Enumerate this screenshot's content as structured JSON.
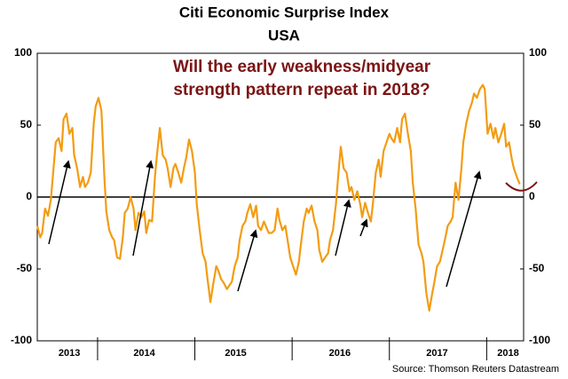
{
  "chart_data": {
    "type": "line",
    "title": "Citi Economic Surprise Index",
    "subtitle": "USA",
    "annotation": [
      "Will the early weakness/midyear",
      "strength pattern repeat in 2018?"
    ],
    "source": "Source: Thomson Reuters Datastream",
    "color": "#f39c12",
    "x": [
      2013.38,
      2013.41,
      2013.43,
      2013.46,
      2013.49,
      2013.52,
      2013.54,
      2013.57,
      2013.6,
      2013.63,
      2013.65,
      2013.68,
      2013.71,
      2013.74,
      2013.76,
      2013.79,
      2013.82,
      2013.85,
      2013.87,
      2013.9,
      2013.93,
      2013.96,
      2013.98,
      2014.01,
      2014.04,
      2014.07,
      2014.09,
      2014.12,
      2014.15,
      2014.17,
      2014.2,
      2014.23,
      2014.26,
      2014.28,
      2014.31,
      2014.34,
      2014.37,
      2014.39,
      2014.42,
      2014.45,
      2014.48,
      2014.5,
      2014.53,
      2014.56,
      2014.59,
      2014.61,
      2014.64,
      2014.67,
      2014.7,
      2014.72,
      2014.75,
      2014.78,
      2014.8,
      2014.83,
      2014.86,
      2014.89,
      2014.91,
      2014.94,
      2014.97,
      2015.0,
      2015.02,
      2015.05,
      2015.08,
      2015.11,
      2015.13,
      2015.16,
      2015.19,
      2015.22,
      2015.24,
      2015.27,
      2015.3,
      2015.33,
      2015.35,
      2015.38,
      2015.41,
      2015.44,
      2015.46,
      2015.49,
      2015.52,
      2015.54,
      2015.57,
      2015.6,
      2015.63,
      2015.65,
      2015.68,
      2015.71,
      2015.74,
      2015.76,
      2015.79,
      2015.82,
      2015.85,
      2015.87,
      2015.9,
      2015.93,
      2015.96,
      2015.98,
      2016.01,
      2016.04,
      2016.07,
      2016.09,
      2016.12,
      2016.15,
      2016.17,
      2016.2,
      2016.23,
      2016.26,
      2016.28,
      2016.31,
      2016.34,
      2016.37,
      2016.39,
      2016.42,
      2016.45,
      2016.48,
      2016.5,
      2016.53,
      2016.56,
      2016.59,
      2016.61,
      2016.64,
      2016.67,
      2016.7,
      2016.72,
      2016.75,
      2016.78,
      2016.81,
      2016.83,
      2016.86,
      2016.89,
      2016.91,
      2016.94,
      2016.97,
      2017.0,
      2017.02,
      2017.05,
      2017.08,
      2017.11,
      2017.13,
      2017.16,
      2017.19,
      2017.22,
      2017.24,
      2017.27,
      2017.3,
      2017.33,
      2017.35,
      2017.38,
      2017.41,
      2017.44,
      2017.46,
      2017.49,
      2017.52,
      2017.54,
      2017.57,
      2017.6,
      2017.63,
      2017.65,
      2017.68,
      2017.71,
      2017.74,
      2017.76,
      2017.79,
      2017.82,
      2017.85,
      2017.87,
      2017.9,
      2017.93,
      2017.96,
      2017.98,
      2018.01,
      2018.04,
      2018.07,
      2018.09,
      2018.12,
      2018.15,
      2018.18,
      2018.2,
      2018.23,
      2018.26,
      2018.28,
      2018.31,
      2018.34
    ],
    "values": [
      -20,
      -28,
      -25,
      -8,
      -13,
      -2,
      14,
      38,
      41,
      32,
      54,
      58,
      44,
      48,
      29,
      20,
      7,
      14,
      7,
      10,
      17,
      51,
      63,
      69,
      60,
      14,
      -10,
      -23,
      -28,
      -30,
      -42,
      -43,
      -28,
      -11,
      -8,
      0,
      -8,
      -23,
      -11,
      -14,
      -10,
      -25,
      -16,
      -17,
      14,
      29,
      48,
      29,
      26,
      20,
      7,
      20,
      23,
      17,
      10,
      21,
      27,
      40,
      32,
      17,
      -5,
      -23,
      -39,
      -45,
      -57,
      -73,
      -60,
      -48,
      -51,
      -57,
      -60,
      -64,
      -62,
      -59,
      -48,
      -42,
      -30,
      -20,
      -17,
      -11,
      -5,
      -14,
      -6,
      -20,
      -23,
      -17,
      -22,
      -25,
      -25,
      -23,
      -8,
      -16,
      -23,
      -20,
      -33,
      -42,
      -48,
      -54,
      -45,
      -33,
      -17,
      -8,
      -11,
      -6,
      -17,
      -23,
      -37,
      -45,
      -42,
      -39,
      -30,
      -23,
      -5,
      20,
      35,
      20,
      17,
      4,
      7,
      -2,
      4,
      -5,
      -14,
      -4,
      -11,
      -17,
      -5,
      17,
      26,
      14,
      32,
      38,
      44,
      41,
      38,
      48,
      38,
      54,
      58,
      44,
      32,
      10,
      -8,
      -33,
      -39,
      -45,
      -67,
      -79,
      -67,
      -60,
      -48,
      -45,
      -39,
      -30,
      -20,
      -17,
      -14,
      10,
      -2,
      20,
      38,
      51,
      60,
      66,
      72,
      69,
      75,
      78,
      75,
      44,
      51,
      41,
      48,
      38,
      44,
      51,
      35,
      38,
      26,
      20,
      14,
      9
    ],
    "xlim": [
      2013.38,
      2018.38
    ],
    "xticks": [
      {
        "value": 2013.71,
        "label": "2013"
      },
      {
        "value": 2014.48,
        "label": "2014"
      },
      {
        "value": 2015.42,
        "label": "2015"
      },
      {
        "value": 2016.49,
        "label": "2016"
      },
      {
        "value": 2017.49,
        "label": "2017"
      },
      {
        "value": 2018.22,
        "label": "2018"
      }
    ],
    "year_dividers": [
      2014,
      2015,
      2016,
      2017,
      2018
    ],
    "ylim": [
      -100,
      100
    ],
    "yticks": [
      -100,
      -50,
      0,
      50,
      100
    ],
    "y2lim": [
      -100,
      100
    ],
    "y2ticks": [
      -100,
      -50,
      0,
      50,
      100
    ],
    "zero_line": 0
  }
}
